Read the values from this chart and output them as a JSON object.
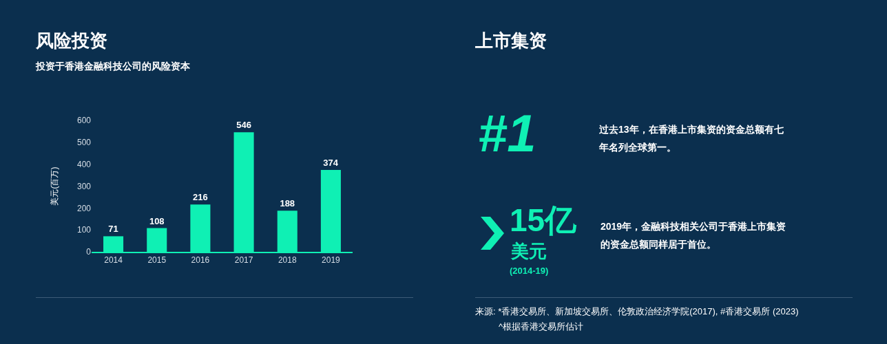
{
  "chart_data": [
    {
      "type": "bar",
      "title": "风险投资",
      "subtitle": "投资于香港金融科技公司的风险资本",
      "ylabel": "美元(百万)",
      "categories": [
        "2014",
        "2015",
        "2016",
        "2017",
        "2018",
        "2019"
      ],
      "values": [
        71,
        108,
        216,
        546,
        188,
        374
      ],
      "color": "#0ff0b4",
      "ylim": [
        0,
        600
      ],
      "yticks": [
        0,
        100,
        200,
        300,
        400,
        500,
        600
      ],
      "grid": false,
      "data_labels": true
    },
    {
      "type": "other",
      "title": "上市集资",
      "annotations": [
        "#1",
        "过去13年，在香港上市集资的资金总额有七年名列全球第一。",
        "15亿",
        "美元",
        "(2014-19)",
        "2019年，金融科技相关公司于香港上市集资的资金总额同样居于首位。",
        "来源: *香港交易所、新加坡交易所、伦敦政治经济学院(2017), #香港交易所 (2023)",
        "^根据香港交易所估计"
      ]
    }
  ]
}
